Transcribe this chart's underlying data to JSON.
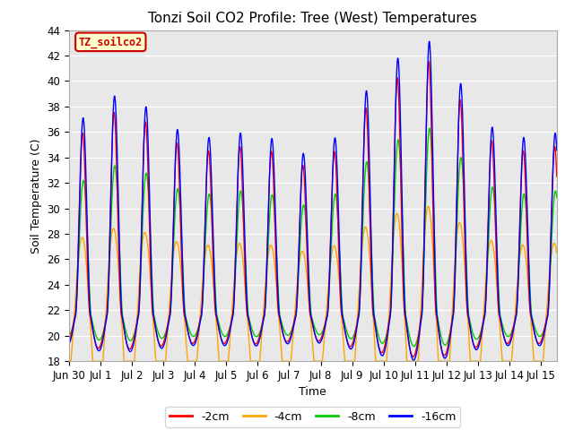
{
  "title": "Tonzi Soil CO2 Profile: Tree (West) Temperatures",
  "xlabel": "Time",
  "ylabel": "Soil Temperature (C)",
  "ylim": [
    18,
    44
  ],
  "legend_labels": [
    "-2cm",
    "-4cm",
    "-8cm",
    "-16cm"
  ],
  "legend_colors": [
    "#ff0000",
    "#ffa500",
    "#00cc00",
    "#0000ff"
  ],
  "annotation_text": "TZ_soilco2",
  "annotation_box_facecolor": "#ffffcc",
  "annotation_box_edgecolor": "#cc0000",
  "background_color": "#e8e8e8",
  "title_fontsize": 11,
  "label_fontsize": 9,
  "tick_fontsize": 8.5
}
